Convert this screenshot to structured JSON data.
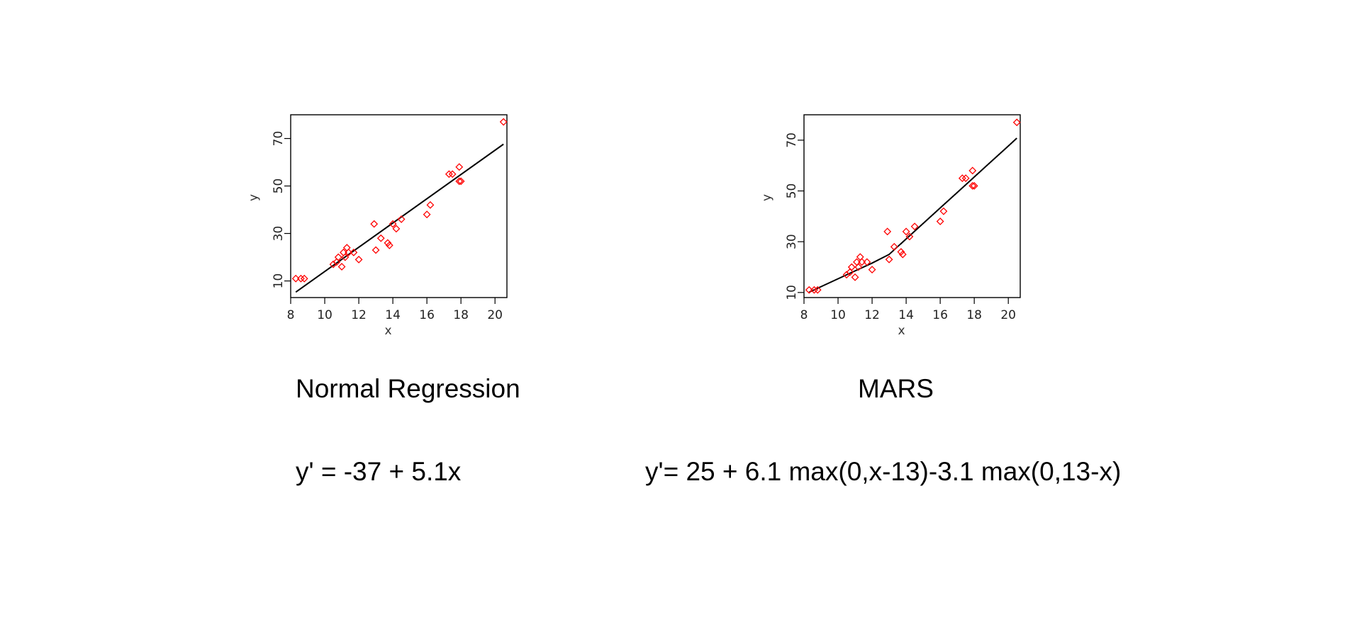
{
  "captions": {
    "left_title": "Normal Regression",
    "right_title": "MARS",
    "left_equation": "y' = -37 + 5.1x",
    "right_equation": "y'= 25 + 6.1 max(0,x-13)-3.1 max(0,13-x)"
  },
  "colors": {
    "points": "#ff0000",
    "fit_line": "#000000",
    "axes": "#000000"
  },
  "chart_data": [
    {
      "type": "scatter",
      "title": "Normal Regression",
      "xlabel": "x",
      "ylabel": "y",
      "xlim": [
        8,
        20.7
      ],
      "ylim": [
        3,
        80
      ],
      "xticks": [
        8,
        10,
        12,
        14,
        16,
        18,
        20
      ],
      "yticks": [
        10,
        30,
        50,
        70
      ],
      "grid": false,
      "points": {
        "x": [
          8.3,
          8.6,
          8.8,
          10.5,
          10.7,
          10.8,
          11.0,
          11.1,
          11.2,
          11.3,
          11.4,
          11.7,
          12.0,
          12.9,
          13.0,
          13.3,
          13.7,
          13.8,
          14.0,
          14.2,
          14.5,
          16.0,
          16.2,
          17.3,
          17.5,
          17.9,
          17.9,
          18.0,
          20.5
        ],
        "y": [
          11,
          11,
          11,
          17,
          18,
          20,
          16,
          22,
          20,
          24,
          22,
          22,
          19,
          34,
          23,
          28,
          26,
          25,
          34,
          32,
          36,
          38,
          42,
          55,
          55,
          58,
          52,
          52,
          77
        ]
      },
      "fit_line": {
        "x": [
          8.3,
          20.5
        ],
        "y": [
          5.3,
          67.6
        ]
      }
    },
    {
      "type": "scatter",
      "title": "MARS",
      "xlabel": "x",
      "ylabel": "y",
      "xlim": [
        8,
        20.7
      ],
      "ylim": [
        8,
        80
      ],
      "xticks": [
        8,
        10,
        12,
        14,
        16,
        18,
        20
      ],
      "yticks": [
        10,
        30,
        50,
        70
      ],
      "grid": false,
      "points": {
        "x": [
          8.3,
          8.6,
          8.8,
          10.5,
          10.7,
          10.8,
          11.0,
          11.1,
          11.2,
          11.3,
          11.4,
          11.7,
          12.0,
          12.9,
          13.0,
          13.3,
          13.7,
          13.8,
          14.0,
          14.2,
          14.5,
          16.0,
          16.2,
          17.3,
          17.5,
          17.9,
          17.9,
          18.0,
          20.5
        ],
        "y": [
          11,
          11,
          11,
          17,
          18,
          20,
          16,
          22,
          20,
          24,
          22,
          22,
          19,
          34,
          23,
          28,
          26,
          25,
          34,
          32,
          36,
          38,
          42,
          55,
          55,
          58,
          52,
          52,
          77
        ]
      },
      "fit_line": {
        "x": [
          8.3,
          9,
          10,
          11,
          12,
          13,
          14,
          15,
          16,
          17,
          18,
          19,
          20,
          20.5
        ],
        "y": [
          10.1,
          12.3,
          15.4,
          18.5,
          21.6,
          25.0,
          31.1,
          37.2,
          43.3,
          49.4,
          55.5,
          61.6,
          67.7,
          70.8
        ]
      }
    }
  ]
}
